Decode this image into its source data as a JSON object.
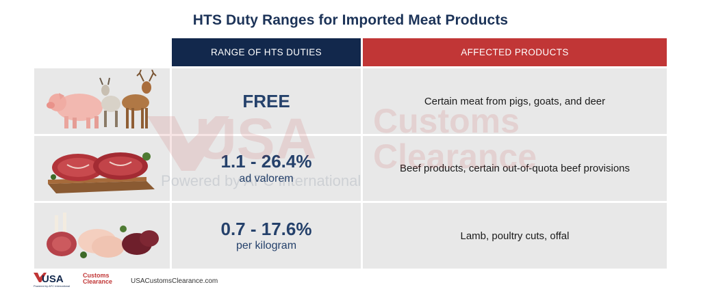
{
  "title": "HTS Duty Ranges for Imported Meat Products",
  "headers": {
    "range": "RANGE OF HTS DUTIES",
    "products": "AFFECTED PRODUCTS"
  },
  "rows": [
    {
      "image_icon": "pig-goat-deer-icon",
      "duty_main": "FREE",
      "duty_sub": "",
      "products": "Certain meat from pigs, goats, and deer"
    },
    {
      "image_icon": "beef-steaks-icon",
      "duty_main": "1.1 - 26.4%",
      "duty_sub": "ad valorem",
      "products": "Beef products, certain out-of-quota beef provisions"
    },
    {
      "image_icon": "lamb-poultry-offal-icon",
      "duty_main": "0.7 - 17.6%",
      "duty_sub": "per kilogram",
      "products": "Lamb, poultry cuts, offal"
    }
  ],
  "footer": {
    "logo_main": "USA",
    "logo_side": "Customs",
    "logo_side2": "Clearance",
    "logo_tagline": "Powered by AFC International",
    "url": "USACustomsClearance.com"
  },
  "watermark": {
    "main": "USA",
    "side": "Customs",
    "side2": "Clearance",
    "tagline": "Powered by AFC International"
  },
  "colors": {
    "title": "#1c3358",
    "header_range_bg": "#12284c",
    "header_products_bg": "#c13636",
    "cell_bg": "#e8e8e8",
    "duty_text": "#25416b"
  }
}
